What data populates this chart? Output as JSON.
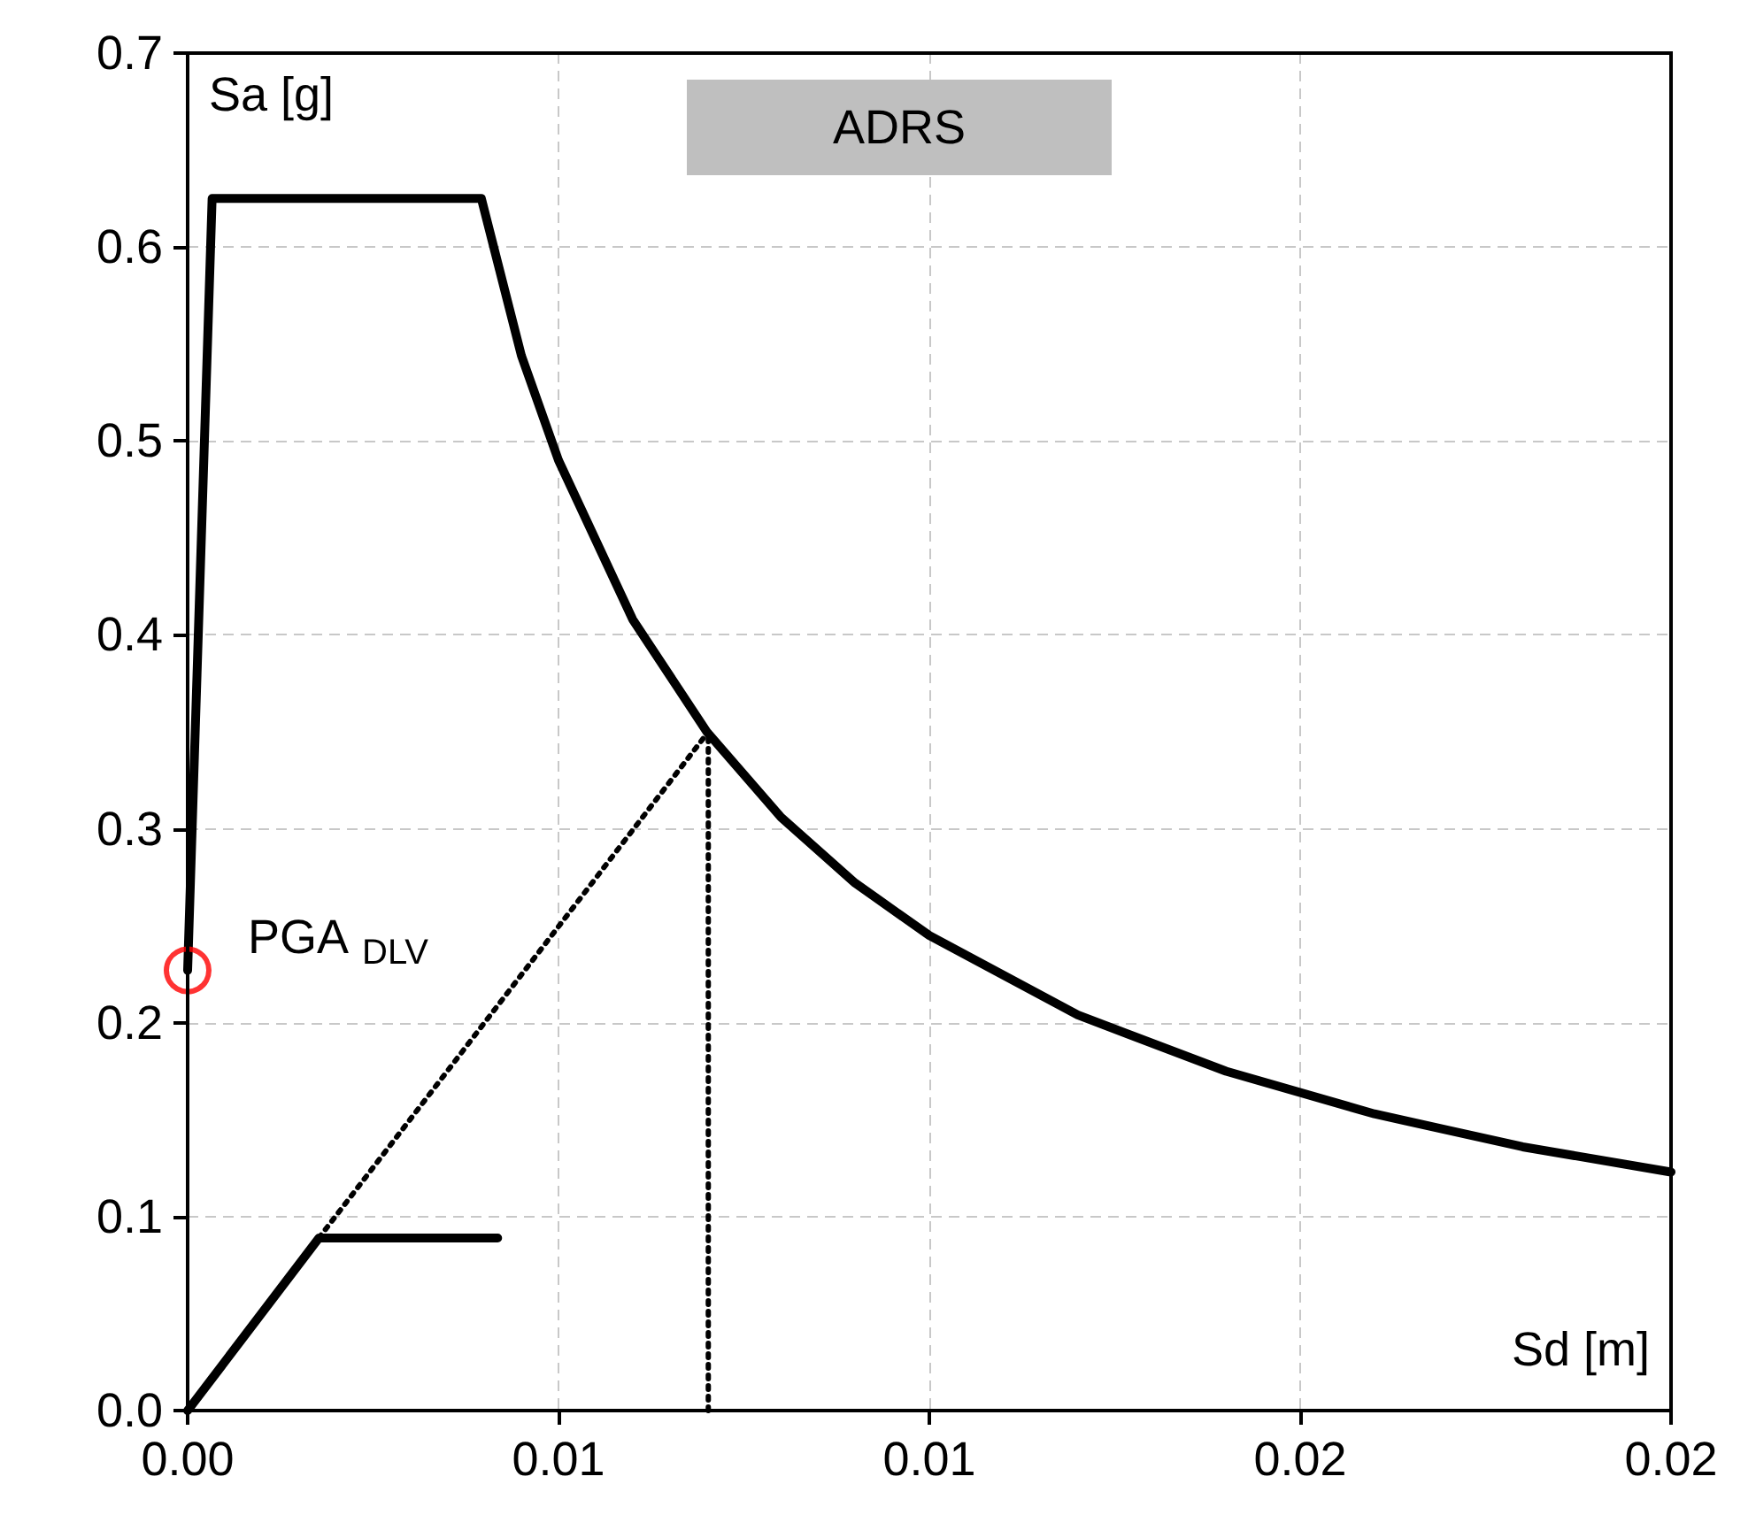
{
  "chart_data": {
    "type": "line",
    "xlabel": "Sd [m]",
    "ylabel": "Sa [g]",
    "xlim": [
      0,
      0.02
    ],
    "ylim": [
      0,
      0.7
    ],
    "xticks": [
      {
        "value": 0,
        "label": "0.00"
      },
      {
        "value": 0.005,
        "label": "0.01"
      },
      {
        "value": 0.01,
        "label": "0.01"
      },
      {
        "value": 0.015,
        "label": "0.02"
      },
      {
        "value": 0.02,
        "label": "0.02"
      }
    ],
    "yticks": [
      {
        "value": 0,
        "label": "0.0"
      },
      {
        "value": 0.1,
        "label": "0.1"
      },
      {
        "value": 0.2,
        "label": "0.2"
      },
      {
        "value": 0.3,
        "label": "0.3"
      },
      {
        "value": 0.4,
        "label": "0.4"
      },
      {
        "value": 0.5,
        "label": "0.5"
      },
      {
        "value": 0.6,
        "label": "0.6"
      },
      {
        "value": 0.7,
        "label": "0.7"
      }
    ],
    "grid": true,
    "marker": "none",
    "series": [
      {
        "color": "#000000",
        "line_style": "solid",
        "x": [
          0,
          0.00033,
          0.00396,
          0.0045,
          0.005,
          0.006,
          0.007,
          0.008,
          0.009,
          0.01,
          0.012,
          0.014,
          0.016,
          0.018,
          0.02
        ],
        "values": [
          0.227,
          0.625,
          0.625,
          0.544,
          0.49,
          0.408,
          0.35,
          0.306,
          0.272,
          0.245,
          0.204,
          0.175,
          0.153,
          0.136,
          0.123
        ]
      },
      {
        "color": "#000000",
        "line_style": "solid",
        "x": [
          0,
          0.00177,
          0.00418
        ],
        "values": [
          0,
          0.089,
          0.089
        ]
      },
      {
        "color": "#000000",
        "line_style": "dotted",
        "x": [
          0.00177,
          0.00702
        ],
        "values": [
          0.089,
          0.35
        ]
      },
      {
        "color": "#000000",
        "line_style": "dotted",
        "x": [
          0.00702,
          0.00702
        ],
        "values": [
          0,
          0.35
        ]
      },
      {
        "type": "scatter",
        "color": "#ff0000",
        "marker": "circle",
        "x": [
          0
        ],
        "values": [
          0.227
        ]
      }
    ],
    "annotations": [
      {
        "text": "PGA $_{DLV}$",
        "x": 0,
        "y": 0.227
      },
      "ADRS"
    ]
  }
}
